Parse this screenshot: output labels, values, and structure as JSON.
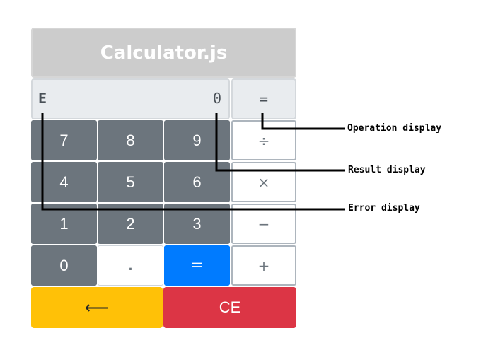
{
  "calculator": {
    "title": "Calculator.js",
    "error_value": "E",
    "result_value": "0",
    "operation_value": "=",
    "digit_rows": [
      [
        "7",
        "8",
        "9"
      ],
      [
        "4",
        "5",
        "6"
      ],
      [
        "1",
        "2",
        "3"
      ]
    ],
    "zero": "0",
    "dot": ".",
    "equals": "=",
    "operators": [
      "÷",
      "×",
      "−",
      "+"
    ],
    "backspace": "⟵",
    "clear": "CE"
  },
  "annotations": {
    "operation": "Operation display",
    "result": "Result display",
    "error": "Error display"
  },
  "colors": {
    "title_bg": "#cccccc",
    "display_bg": "#e9ecef",
    "digit_key": "#6c757d",
    "equals_key": "#007bff",
    "backspace_key": "#ffc107",
    "clear_key": "#dc3545"
  }
}
